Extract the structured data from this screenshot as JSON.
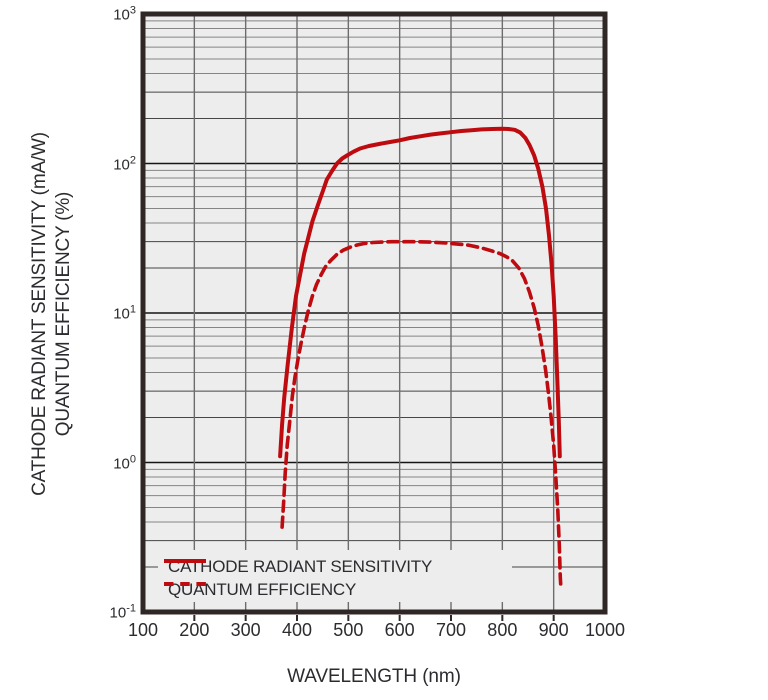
{
  "chart_data": {
    "type": "line",
    "title": "",
    "xlabel": "WAVELENGTH (nm)",
    "ylabel_line1": "CATHODE RADIANT SENSITIVITY (mA/W)",
    "ylabel_line2": "QUANTUM EFFICIENCY (%)",
    "x_axis": {
      "scale": "linear",
      "min": 100,
      "max": 1000,
      "ticks": [
        100,
        200,
        300,
        400,
        500,
        600,
        700,
        800,
        900,
        1000
      ]
    },
    "y_axis": {
      "scale": "log",
      "min": 0.1,
      "max": 1000,
      "ticks": [
        {
          "base": "10",
          "exponent": "3",
          "value": 1000
        },
        {
          "base": "10",
          "exponent": "2",
          "value": 100
        },
        {
          "base": "10",
          "exponent": "1",
          "value": 10
        },
        {
          "base": "10",
          "exponent": "0",
          "value": 1
        },
        {
          "base": "10",
          "exponent": "-1",
          "value": 0.1
        }
      ]
    },
    "grid": {
      "major": true,
      "log_minor": true
    },
    "legend": {
      "position": "inside-bottom-left",
      "entries": [
        {
          "label": "CATHODE RADIANT SENSITIVITY",
          "line": "solid"
        },
        {
          "label": "QUANTUM EFFICIENCY",
          "line": "dashed"
        }
      ]
    },
    "series": [
      {
        "name": "CATHODE RADIANT SENSITIVITY",
        "units": "mA/W",
        "line": "solid",
        "color": "#be0b10",
        "points": [
          [
            367,
            1.1
          ],
          [
            371,
            1.8
          ],
          [
            375,
            2.7
          ],
          [
            382,
            4.6
          ],
          [
            390,
            8.0
          ],
          [
            398,
            13
          ],
          [
            406,
            18
          ],
          [
            414,
            25
          ],
          [
            421,
            31
          ],
          [
            430,
            41
          ],
          [
            441,
            53
          ],
          [
            450,
            65
          ],
          [
            458,
            78
          ],
          [
            468,
            89
          ],
          [
            478,
            100
          ],
          [
            488,
            108
          ],
          [
            499,
            114
          ],
          [
            510,
            120
          ],
          [
            523,
            126
          ],
          [
            540,
            131
          ],
          [
            560,
            135
          ],
          [
            580,
            139
          ],
          [
            600,
            143
          ],
          [
            620,
            148
          ],
          [
            640,
            152
          ],
          [
            660,
            156
          ],
          [
            680,
            159
          ],
          [
            700,
            162
          ],
          [
            720,
            165
          ],
          [
            740,
            167
          ],
          [
            760,
            169
          ],
          [
            780,
            170
          ],
          [
            800,
            171
          ],
          [
            812,
            170
          ],
          [
            824,
            168
          ],
          [
            835,
            161
          ],
          [
            845,
            148
          ],
          [
            853,
            133
          ],
          [
            862,
            113
          ],
          [
            870,
            92
          ],
          [
            878,
            70
          ],
          [
            885,
            50
          ],
          [
            891,
            33
          ],
          [
            896,
            21
          ],
          [
            900,
            13
          ],
          [
            904,
            6.8
          ],
          [
            907,
            3.6
          ],
          [
            910,
            1.9
          ],
          [
            912,
            1.1
          ]
        ]
      },
      {
        "name": "QUANTUM EFFICIENCY",
        "units": "%",
        "line": "dashed",
        "color": "#be0b10",
        "points": [
          [
            371,
            0.37
          ],
          [
            374,
            0.55
          ],
          [
            377,
            0.85
          ],
          [
            381,
            1.3
          ],
          [
            386,
            1.9
          ],
          [
            391,
            2.8
          ],
          [
            396,
            3.7
          ],
          [
            402,
            4.9
          ],
          [
            408,
            6.3
          ],
          [
            415,
            8.2
          ],
          [
            422,
            10.4
          ],
          [
            430,
            13
          ],
          [
            438,
            15.5
          ],
          [
            447,
            18
          ],
          [
            456,
            20.5
          ],
          [
            466,
            22.5
          ],
          [
            477,
            24.5
          ],
          [
            490,
            26.3
          ],
          [
            503,
            27.5
          ],
          [
            517,
            28.5
          ],
          [
            532,
            29.2
          ],
          [
            548,
            29.6
          ],
          [
            565,
            29.8
          ],
          [
            585,
            30
          ],
          [
            610,
            30
          ],
          [
            635,
            30
          ],
          [
            660,
            29.8
          ],
          [
            685,
            29.5
          ],
          [
            710,
            29
          ],
          [
            735,
            28.4
          ],
          [
            760,
            27.2
          ],
          [
            780,
            26
          ],
          [
            795,
            25
          ],
          [
            808,
            23.8
          ],
          [
            820,
            22.3
          ],
          [
            832,
            20
          ],
          [
            843,
            17
          ],
          [
            853,
            13.8
          ],
          [
            862,
            10.8
          ],
          [
            870,
            8.2
          ],
          [
            877,
            6.0
          ],
          [
            884,
            4.2
          ],
          [
            890,
            2.9
          ],
          [
            895,
            2.0
          ],
          [
            900,
            1.3
          ],
          [
            904,
            0.82
          ],
          [
            908,
            0.48
          ],
          [
            911,
            0.28
          ],
          [
            913,
            0.17
          ],
          [
            914,
            0.145
          ]
        ]
      }
    ],
    "colors": {
      "curve_red": "#be0b10",
      "plot_background": "#ededed",
      "page_background": "#ffffff",
      "border": "#2e2725",
      "major_gridline": "#151515",
      "minor_gridline_dark": "#454545",
      "minor_gridline_light": "#858585",
      "vertical_gridline": "#6d6d6d",
      "text": "#2c2c30"
    }
  }
}
